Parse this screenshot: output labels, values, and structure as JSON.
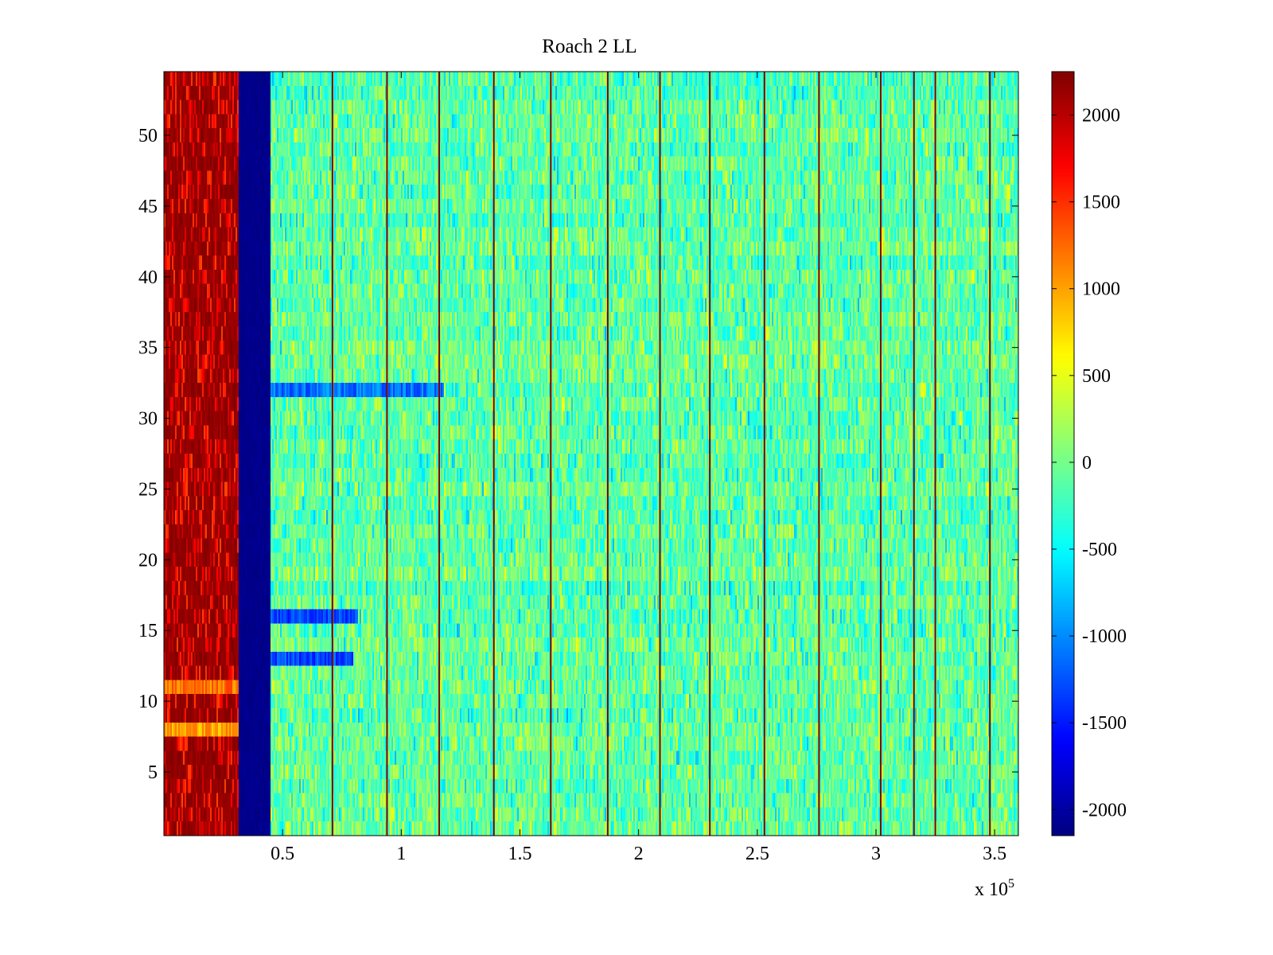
{
  "chart_data": {
    "type": "heatmap",
    "title": "Roach 2 LL",
    "xlabel": "",
    "ylabel": "",
    "x_multiplier": "x 10",
    "x_multiplier_exponent": "5",
    "xlim": [
      0,
      360000
    ],
    "ylim": [
      0.5,
      54.5
    ],
    "rows": 54,
    "x_ticks": [
      50000,
      100000,
      150000,
      200000,
      250000,
      300000,
      350000
    ],
    "x_tick_labels": [
      "0.5",
      "1",
      "1.5",
      "2",
      "2.5",
      "3",
      "3.5"
    ],
    "y_ticks": [
      5,
      10,
      15,
      20,
      25,
      30,
      35,
      40,
      45,
      50
    ],
    "y_tick_labels": [
      "5",
      "10",
      "15",
      "20",
      "25",
      "30",
      "35",
      "40",
      "45",
      "50"
    ],
    "colorbar": {
      "colormap": "jet",
      "clim": [
        -2150,
        2250
      ],
      "ticks": [
        -2000,
        -1500,
        -1000,
        -500,
        0,
        500,
        1000,
        1500,
        2000
      ],
      "tick_labels": [
        "-2000",
        "-1500",
        "-1000",
        "-500",
        "0",
        "500",
        "1000",
        "1500",
        "2000"
      ]
    },
    "regions": [
      {
        "x": [
          0,
          31500
        ],
        "value_range": [
          1400,
          2250
        ],
        "description_value": 2100
      },
      {
        "x": [
          31500,
          45000
        ],
        "value": -2100
      },
      {
        "x": [
          45000,
          360000
        ],
        "value_range": [
          -900,
          800
        ],
        "mean": -100
      }
    ],
    "stripe_x": [
      71000,
      94000,
      116000,
      139000,
      163000,
      187000,
      209000,
      230000,
      253000,
      276000,
      302000,
      316000,
      325000,
      348000
    ],
    "stripe_value": 2250,
    "row_features": [
      {
        "row": 32,
        "x": [
          45000,
          118000
        ],
        "value": -1100
      },
      {
        "row": 16,
        "x": [
          45000,
          82000
        ],
        "value": -1300
      },
      {
        "row": 13,
        "x": [
          45000,
          80000
        ],
        "value": -1300
      },
      {
        "row": 8,
        "x": [
          0,
          31500
        ],
        "value": 1000
      },
      {
        "row": 11,
        "x": [
          0,
          31500
        ],
        "value": 1200
      }
    ]
  }
}
